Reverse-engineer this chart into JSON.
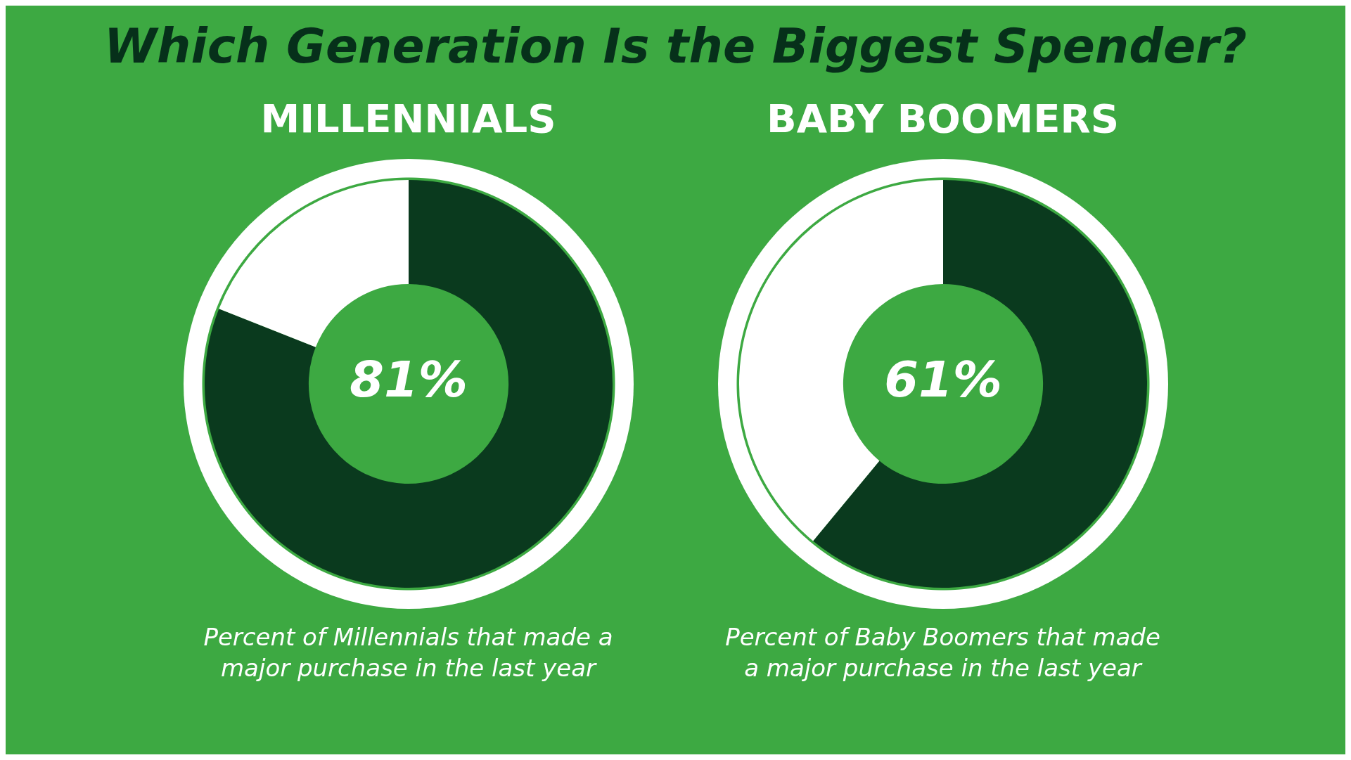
{
  "chart_data": [
    {
      "type": "donut",
      "title": "MILLENNIALS",
      "categories": [
        null,
        null
      ],
      "values": [
        81,
        19
      ],
      "colors": [
        "#0a3a1e",
        "#ffffff"
      ],
      "value_labels": [
        "81%",
        null
      ],
      "legend": false,
      "annotations": [
        "Which Generation Is the Biggest Spender?",
        "Percent of Millennials that made a major purchase in the last year"
      ]
    },
    {
      "type": "donut",
      "title": "BABY BOOMERS",
      "categories": [
        null,
        null
      ],
      "values": [
        61,
        39
      ],
      "colors": [
        "#0a3a1e",
        "#ffffff"
      ],
      "value_labels": [
        "61%",
        null
      ],
      "legend": false,
      "annotations": [
        "Percent of Baby Boomers that made a major purchase in the last year"
      ]
    }
  ]
}
